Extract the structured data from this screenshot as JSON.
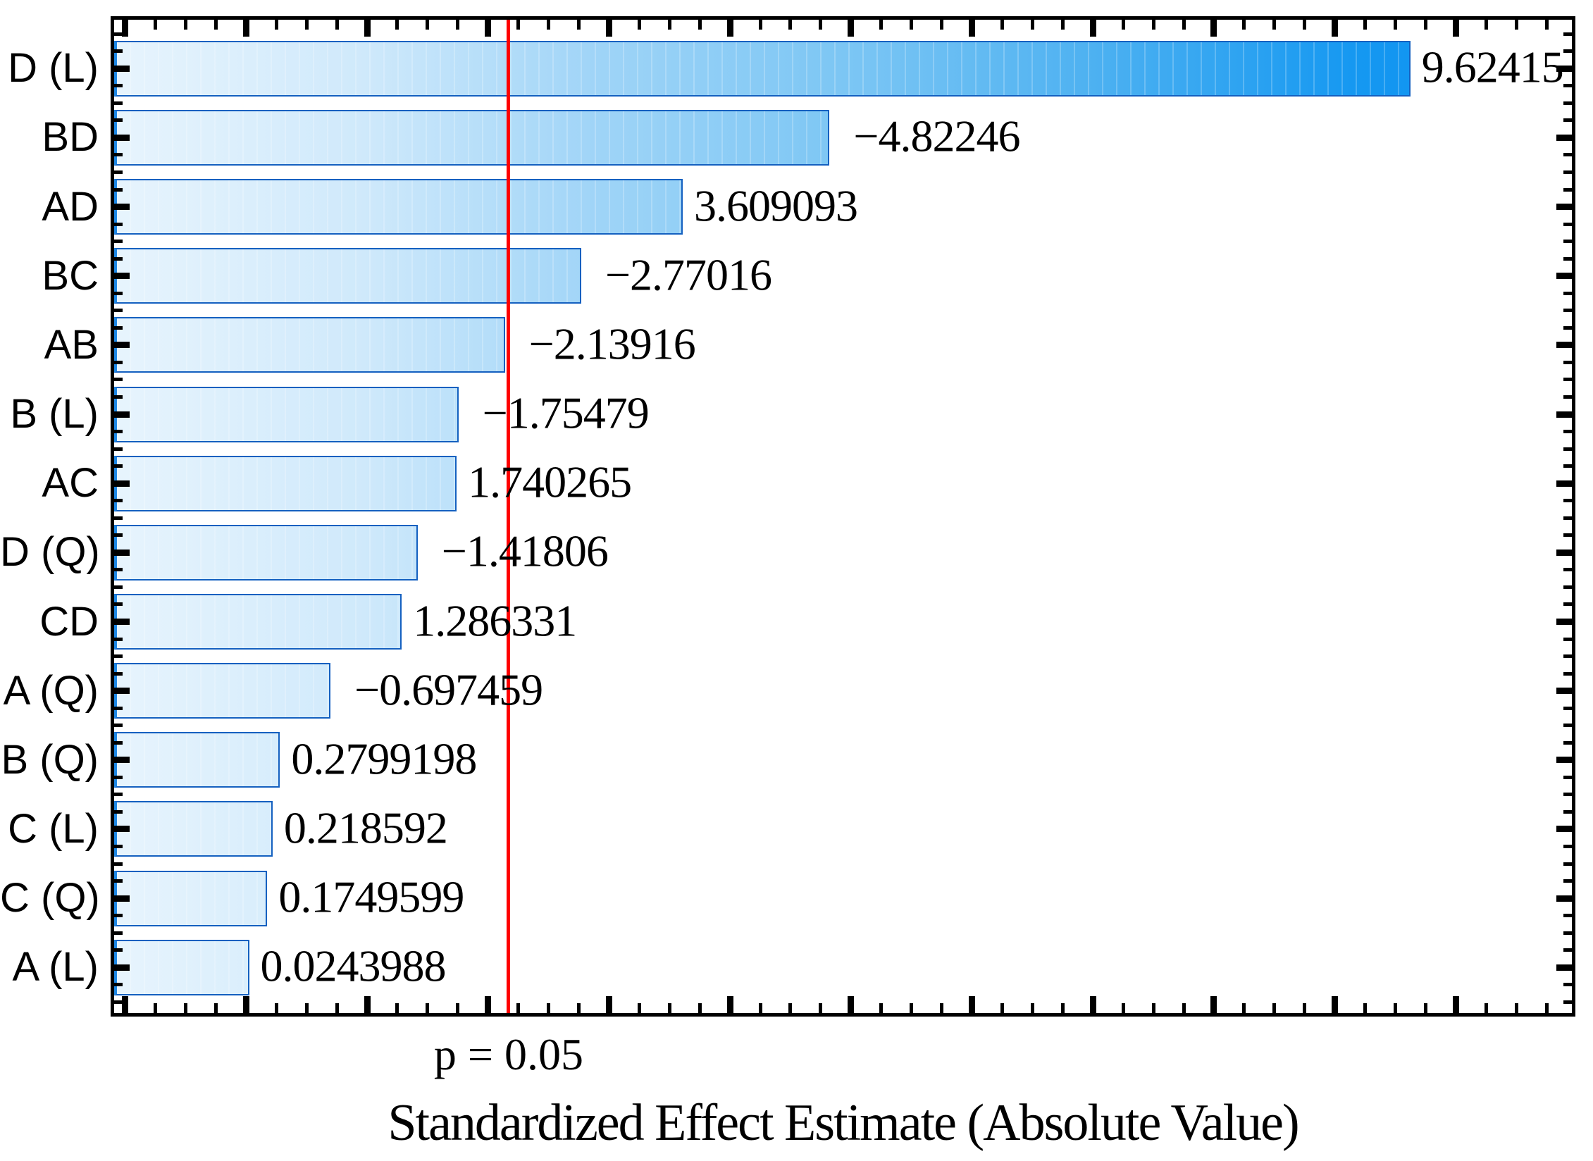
{
  "chart_data": {
    "type": "bar",
    "orientation": "horizontal",
    "title": "",
    "xlabel": "Standardized Effect Estimate (Absolute Value)",
    "ylabel": "",
    "categories": [
      "D (L)",
      "BD",
      "AD",
      "BC",
      "AB",
      "B (L)",
      "AC",
      "D (Q)",
      "CD",
      "A (Q)",
      "B (Q)",
      "C (L)",
      "C (Q)",
      "A (L)"
    ],
    "values": [
      9.62415,
      -4.82246,
      3.609093,
      -2.77016,
      -2.13916,
      -1.75479,
      1.740265,
      -1.41806,
      1.286331,
      -0.697459,
      0.2799198,
      0.218592,
      0.1749599,
      0.0243988
    ],
    "value_labels": [
      "9.62415",
      "−4.82246",
      "3.609093",
      "−2.77016",
      "−2.13916",
      "−1.75479",
      "1.740265",
      "−1.41806",
      "1.286331",
      "−0.697459",
      "0.2799198",
      "0.218592",
      "0.1749599",
      "0.0243988"
    ],
    "bars_plotted_as": "absolute value, drawn from left plot edge",
    "p_line": {
      "label": "p = 0.05",
      "x_value": 2.17,
      "color": "#ff0000"
    },
    "axis": {
      "x_value_at_left_edge": -1.091,
      "x_value_at_right_edge": 10.959,
      "x_minor_tick_step": 0.25,
      "x_major_tick_step": 1.0,
      "x_tick_numbers_shown": false,
      "grid": false,
      "frame_color": "#000000"
    },
    "bar_style": {
      "gradient_start_color": "#e7f4fd",
      "gradient_end_color": "#0a8ef0",
      "border_color": "#1460c0"
    },
    "legend": null
  }
}
